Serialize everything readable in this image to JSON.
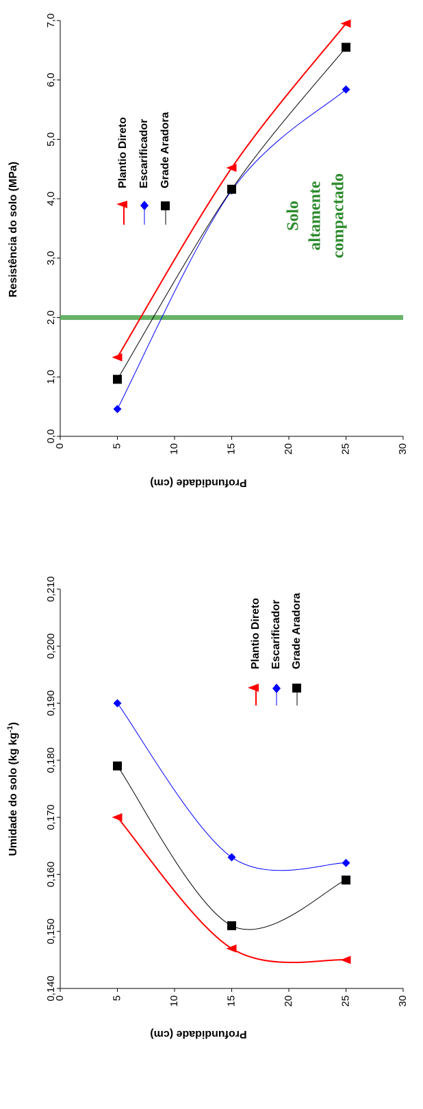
{
  "colors": {
    "plantio": "#ff0000",
    "escarificador": "#0000ff",
    "grade": "#000000",
    "threshold": "#66b266",
    "annotation": "#2e8b2e"
  },
  "chart_data": [
    {
      "type": "line",
      "orientation": "rotated 90 degrees clockwise",
      "title": "",
      "xlabel": "Profundidade (cm)",
      "ylabel": "Resistência do solo (MPa)",
      "xlim": [
        0,
        30
      ],
      "ylim": [
        0,
        7
      ],
      "x_ticks": [
        "0",
        "5",
        "10",
        "15",
        "20",
        "25",
        "30"
      ],
      "y_ticks": [
        "0,0",
        "1,0",
        "2,0",
        "3,0",
        "4,0",
        "5,0",
        "6,0",
        "7,0"
      ],
      "x": [
        5,
        15,
        25
      ],
      "series": [
        {
          "name": "Plantio Direto",
          "values": [
            1.33,
            4.52,
            6.95
          ],
          "marker": "triangle",
          "color": "#ff0000"
        },
        {
          "name": "Escarificador",
          "values": [
            0.46,
            4.14,
            5.84
          ],
          "marker": "diamond",
          "color": "#0000ff"
        },
        {
          "name": "Grade Aradora",
          "values": [
            0.96,
            4.16,
            6.55
          ],
          "marker": "square",
          "color": "#000000"
        }
      ],
      "threshold": {
        "value": 2.0
      },
      "annotation": [
        "Solo",
        "altamente",
        "compactado"
      ],
      "legend_placement": "upper-left",
      "grid": false
    },
    {
      "type": "line",
      "orientation": "rotated 90 degrees clockwise",
      "title": "",
      "xlabel": "Profundidade (cm)",
      "ylabel": "Umidade do solo (kg kg-1)",
      "ylabel_main": "Umidade do solo (kg kg",
      "ylabel_sup": "-1",
      "ylabel_end": ")",
      "xlim": [
        0,
        30
      ],
      "ylim": [
        0.14,
        0.21
      ],
      "x_ticks": [
        "0",
        "5",
        "10",
        "15",
        "20",
        "25",
        "30"
      ],
      "y_ticks": [
        "0,140",
        "0,150",
        "0,160",
        "0,170",
        "0,180",
        "0,190",
        "0,200",
        "0,210"
      ],
      "x": [
        5,
        15,
        25
      ],
      "series": [
        {
          "name": "Plantio Direto",
          "values": [
            0.17,
            0.147,
            0.145
          ],
          "marker": "triangle",
          "color": "#ff0000"
        },
        {
          "name": "Escarificador",
          "values": [
            0.19,
            0.163,
            0.162
          ],
          "marker": "diamond",
          "color": "#0000ff"
        },
        {
          "name": "Grade Aradora",
          "values": [
            0.179,
            0.151,
            0.159
          ],
          "marker": "square",
          "color": "#000000"
        }
      ],
      "legend_placement": "upper-center",
      "grid": false
    }
  ]
}
